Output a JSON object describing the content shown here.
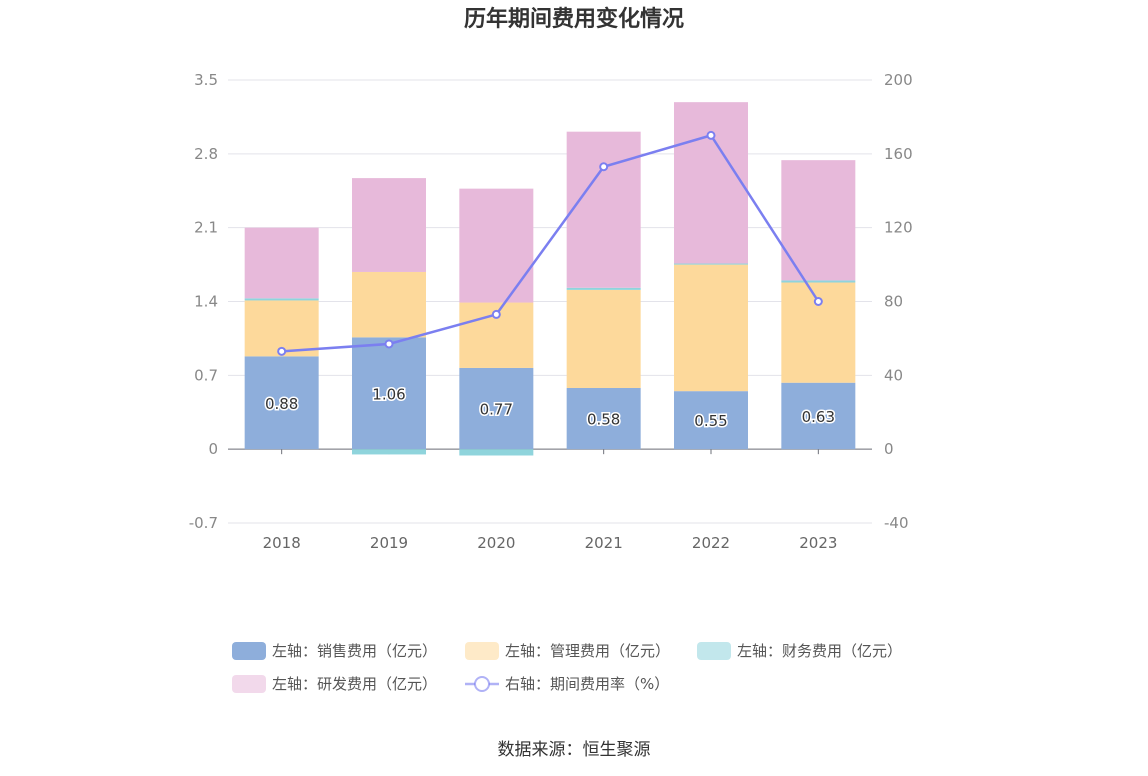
{
  "chart_data": {
    "type": "bar",
    "title": "历年期间费用变化情况",
    "categories": [
      "2018",
      "2019",
      "2020",
      "2021",
      "2022",
      "2023"
    ],
    "stacked": true,
    "left_axis": {
      "ylim": [
        -0.7,
        3.5
      ],
      "ticks": [
        "3.5",
        "2.8",
        "2.1",
        "1.4",
        "0.7",
        "0",
        "-0.7"
      ],
      "tick_values": [
        3.5,
        2.8,
        2.1,
        1.4,
        0.7,
        0,
        -0.7
      ]
    },
    "right_axis": {
      "ylim": [
        -40,
        200
      ],
      "ticks": [
        "200",
        "160",
        "120",
        "80",
        "40",
        "0",
        "-40"
      ],
      "tick_values": [
        200,
        160,
        120,
        80,
        40,
        0,
        -40
      ]
    },
    "series": [
      {
        "name": "左轴：销售费用（亿元）",
        "axis": "left",
        "type": "bar",
        "color": "#8eaedb",
        "values": [
          0.88,
          1.06,
          0.77,
          0.58,
          0.55,
          0.63
        ],
        "labels": [
          "0.88",
          "1.06",
          "0.77",
          "0.58",
          "0.55",
          "0.63"
        ]
      },
      {
        "name": "左轴：管理费用（亿元）",
        "axis": "left",
        "type": "bar",
        "color": "#fdd99b",
        "values": [
          0.53,
          0.62,
          0.62,
          0.93,
          1.2,
          0.95
        ]
      },
      {
        "name": "左轴：财务费用（亿元）",
        "axis": "left",
        "type": "bar",
        "color": "#8fd4dc",
        "values": [
          0.02,
          -0.05,
          -0.06,
          0.02,
          0.01,
          0.02
        ]
      },
      {
        "name": "左轴：研发费用（亿元）",
        "axis": "left",
        "type": "bar",
        "color": "#e7b9da",
        "values": [
          0.67,
          0.89,
          1.08,
          1.48,
          1.53,
          1.14
        ]
      },
      {
        "name": "右轴：期间费用率（%）",
        "axis": "right",
        "type": "line",
        "color": "#7b7ff0",
        "values": [
          53,
          57,
          73,
          153,
          170,
          80
        ]
      }
    ],
    "legend_position": "bottom",
    "source": "数据来源：恒生聚源"
  }
}
